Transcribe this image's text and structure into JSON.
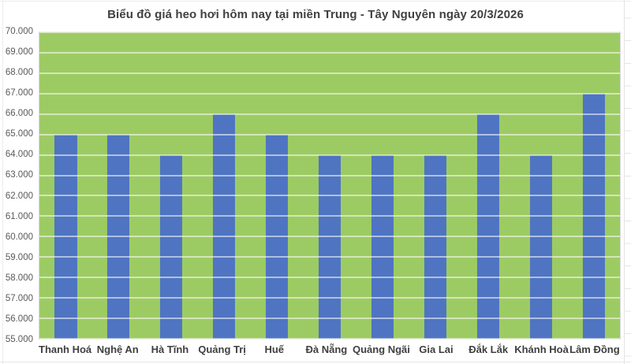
{
  "title": "Biểu đồ giá heo hơi hôm nay tại miền Trung - Tây Nguyên ngày 20/3/2026",
  "colors": {
    "bar": "#4F74C2",
    "plot_background": "#9DCB63",
    "gridline": "rgba(255,255,255,0.55)",
    "title_text": "#404040",
    "axis_text": "#595959",
    "x_label_text": "#3F3F3F"
  },
  "chart_data": {
    "type": "bar",
    "title": "Biểu đồ giá heo hơi hôm nay tại miền Trung - Tây Nguyên ngày 20/3/2026",
    "categories": [
      "Thanh Hoá",
      "Nghệ An",
      "Hà Tĩnh",
      "Quảng Trị",
      "Huế",
      "Đà Nẵng",
      "Quảng Ngãi",
      "Gia Lai",
      "Đắk Lắk",
      "Khánh Hoà",
      "Lâm Đồng"
    ],
    "values": [
      65000,
      65000,
      64000,
      66000,
      65000,
      64000,
      64000,
      64000,
      66000,
      64000,
      67000
    ],
    "xlabel": "",
    "ylabel": "",
    "ylim": [
      55000,
      70000
    ],
    "ytick_step": 1000,
    "yticks": [
      {
        "value": 70000,
        "label": "70.000"
      },
      {
        "value": 69000,
        "label": "69.000"
      },
      {
        "value": 68000,
        "label": "68.000"
      },
      {
        "value": 67000,
        "label": "67.000"
      },
      {
        "value": 66000,
        "label": "66.000"
      },
      {
        "value": 65000,
        "label": "65.000"
      },
      {
        "value": 64000,
        "label": "64.000"
      },
      {
        "value": 63000,
        "label": "63.000"
      },
      {
        "value": 62000,
        "label": "62.000"
      },
      {
        "value": 61000,
        "label": "61.000"
      },
      {
        "value": 60000,
        "label": "60.000"
      },
      {
        "value": 59000,
        "label": "59.000"
      },
      {
        "value": 58000,
        "label": "58.000"
      },
      {
        "value": 57000,
        "label": "57.000"
      },
      {
        "value": 56000,
        "label": "56.000"
      },
      {
        "value": 55000,
        "label": "55.000"
      }
    ],
    "grid": true,
    "legend": false
  }
}
